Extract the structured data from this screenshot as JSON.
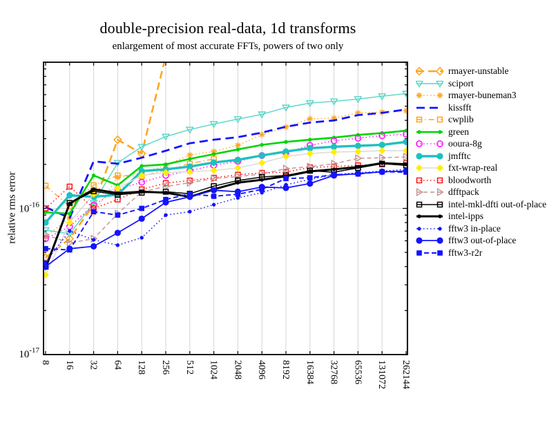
{
  "chart_data": {
    "type": "line",
    "title": "double-precision real-data, 1d transforms",
    "subtitle": "enlargement of most accurate FFTs, powers of two only",
    "xlabel": "",
    "ylabel": "relative rms error",
    "x_scale": "log2",
    "y_scale": "log10",
    "grid": "major",
    "legend_position": "right-outside",
    "categories": [
      "8",
      "16",
      "32",
      "64",
      "128",
      "256",
      "512",
      "1024",
      "2048",
      "4096",
      "8192",
      "16384",
      "32768",
      "65536",
      "131072",
      "262144"
    ],
    "values_unit": "1e-16",
    "ylim_units_1e16": [
      0.1,
      10
    ],
    "y_ticks": [
      {
        "base": "10",
        "exp": "-16",
        "value": 1
      },
      {
        "base": "10",
        "exp": "-17",
        "value": 0.1
      }
    ],
    "colors": {
      "orange": "#ffa520",
      "light_turquoise": "#55d6c8",
      "blue": "#1414ff",
      "green": "#00d400",
      "magenta": "#ff22ff",
      "teal": "#1fc0c0",
      "yellow": "#ffee00",
      "pale_gray": "#dcdcdc",
      "red": "#ff1414",
      "rosybrown": "#c49191",
      "black": "#000000",
      "gridline": "#d4d4d4"
    },
    "series": [
      {
        "name": "rmayer-unstable",
        "color": "#ffa520",
        "dash": "11,6",
        "width": 2.6,
        "marker": "diamond-open",
        "values": [
          0.46,
          0.62,
          1.06,
          2.95,
          2.37,
          11,
          null,
          null,
          null,
          null,
          null,
          null,
          null,
          null,
          null,
          null
        ]
      },
      {
        "name": "sciport",
        "color": "#55d6c8",
        "dash": "",
        "width": 1.4,
        "marker": "triangle-down-open",
        "values": [
          0.71,
          0.67,
          1.09,
          2.05,
          2.64,
          3.1,
          3.46,
          3.78,
          4.08,
          4.4,
          4.9,
          5.25,
          5.4,
          5.6,
          5.85,
          6.1
        ]
      },
      {
        "name": "rmayer-buneman3",
        "color": "#ffa520",
        "dash": "1.5,3.5",
        "width": 1.4,
        "marker": "asterisk",
        "values": [
          0.64,
          0.86,
          0.93,
          1.63,
          1.75,
          1.97,
          2.32,
          2.45,
          2.7,
          3.2,
          3.6,
          4.1,
          4.15,
          4.5,
          4.55,
          4.65
        ]
      },
      {
        "name": "kissfft",
        "color": "#1414ff",
        "dash": "12,7",
        "width": 2.8,
        "marker": "none",
        "values": [
          1.02,
          0.86,
          2.1,
          2.02,
          2.22,
          2.48,
          2.79,
          2.95,
          3.07,
          3.3,
          3.62,
          3.86,
          4.0,
          4.35,
          4.5,
          4.75
        ]
      },
      {
        "name": "cwplib",
        "color": "#ffa520",
        "dash": "8,4,1.5,4",
        "width": 1.4,
        "marker": "square-open",
        "values": [
          1.43,
          1.03,
          1.44,
          1.68,
          1.66,
          1.83,
          2.02,
          2.18,
          null,
          null,
          null,
          null,
          null,
          null,
          null,
          null
        ]
      },
      {
        "name": "green",
        "color": "#00d400",
        "dash": "",
        "width": 2.6,
        "marker": "dot",
        "values": [
          0.94,
          0.92,
          1.68,
          1.44,
          1.95,
          2.0,
          2.18,
          2.35,
          2.53,
          2.72,
          2.85,
          2.95,
          3.05,
          3.18,
          3.28,
          3.4
        ]
      },
      {
        "name": "ooura-8g",
        "color": "#ff22ff",
        "dash": "1.5,3.5",
        "width": 1.6,
        "marker": "circle-open",
        "values": [
          0.62,
          0.75,
          1.05,
          1.35,
          1.51,
          1.68,
          1.81,
          1.97,
          2.1,
          2.3,
          2.4,
          2.7,
          2.9,
          3.02,
          3.14,
          3.22
        ]
      },
      {
        "name": "jmfftc",
        "color": "#1fc0c0",
        "dash": "",
        "width": 3.4,
        "marker": "circle-filled",
        "values": [
          0.8,
          1.23,
          1.2,
          1.24,
          1.8,
          1.85,
          1.93,
          2.06,
          2.15,
          2.3,
          2.45,
          2.58,
          2.64,
          2.68,
          2.72,
          2.85
        ]
      },
      {
        "name": "fxt-wrap-real",
        "color": "#dcdcdc",
        "marker_color": "#ffee00",
        "dash": "",
        "width": 1.6,
        "marker": "diamond-filled",
        "values": [
          0.35,
          0.8,
          1.25,
          1.37,
          1.68,
          1.76,
          1.78,
          1.82,
          1.89,
          2.05,
          2.27,
          2.37,
          2.43,
          2.45,
          2.48,
          2.48
        ]
      },
      {
        "name": "bloodworth",
        "color": "#ff1414",
        "dash": "1.5,3.5",
        "width": 1.6,
        "marker": "square-open",
        "values": [
          1.0,
          1.41,
          1.0,
          1.15,
          1.35,
          1.49,
          1.55,
          1.62,
          1.7,
          1.75,
          1.77,
          1.91,
          1.93,
          1.97,
          2.0,
          2.04
        ]
      },
      {
        "name": "dfftpack",
        "color": "#c49191",
        "dash": "6,4",
        "width": 1.4,
        "marker": "triangle-right-open",
        "values": [
          0.66,
          0.58,
          0.62,
          0.92,
          1.3,
          1.41,
          1.5,
          1.6,
          1.65,
          1.72,
          1.87,
          1.93,
          2.02,
          2.2,
          2.22,
          2.25
        ]
      },
      {
        "name": "intel-mkl-dfti out-of-place",
        "color": "#000000",
        "dash": "",
        "width": 1.5,
        "marker": "square-open",
        "values": [
          0.4,
          1.09,
          1.31,
          1.24,
          1.28,
          1.3,
          1.26,
          1.42,
          1.55,
          1.64,
          1.68,
          1.81,
          1.77,
          1.89,
          2.02,
          1.97
        ]
      },
      {
        "name": "intel-ipps",
        "color": "#000000",
        "dash": "",
        "width": 3.0,
        "marker": "dot",
        "values": [
          0.39,
          1.08,
          1.35,
          1.27,
          1.3,
          1.28,
          1.2,
          1.35,
          1.5,
          1.57,
          1.66,
          1.79,
          1.85,
          1.92,
          2.04,
          2.0
        ]
      },
      {
        "name": "fftw3 in-place",
        "color": "#1414ff",
        "dash": "1.5,3.5",
        "width": 1.6,
        "marker": "dot",
        "values": [
          0.43,
          0.7,
          0.61,
          0.56,
          0.63,
          0.9,
          0.95,
          1.06,
          1.18,
          1.28,
          1.45,
          1.58,
          1.7,
          1.75,
          1.8,
          1.85
        ]
      },
      {
        "name": "fftw3 out-of-place",
        "color": "#1414ff",
        "dash": "",
        "width": 1.8,
        "marker": "circle-filled",
        "values": [
          0.4,
          0.53,
          0.55,
          0.68,
          0.85,
          1.1,
          1.2,
          1.33,
          1.3,
          1.4,
          1.38,
          1.48,
          1.68,
          1.73,
          1.78,
          1.8
        ]
      },
      {
        "name": "fftw3-r2r",
        "color": "#1414ff",
        "dash": "7,4",
        "width": 1.9,
        "marker": "square-filled",
        "values": [
          0.53,
          0.52,
          0.95,
          0.9,
          1.0,
          1.15,
          1.26,
          1.21,
          1.25,
          1.35,
          1.6,
          1.62,
          1.7,
          1.72,
          1.78,
          1.77
        ]
      }
    ]
  }
}
